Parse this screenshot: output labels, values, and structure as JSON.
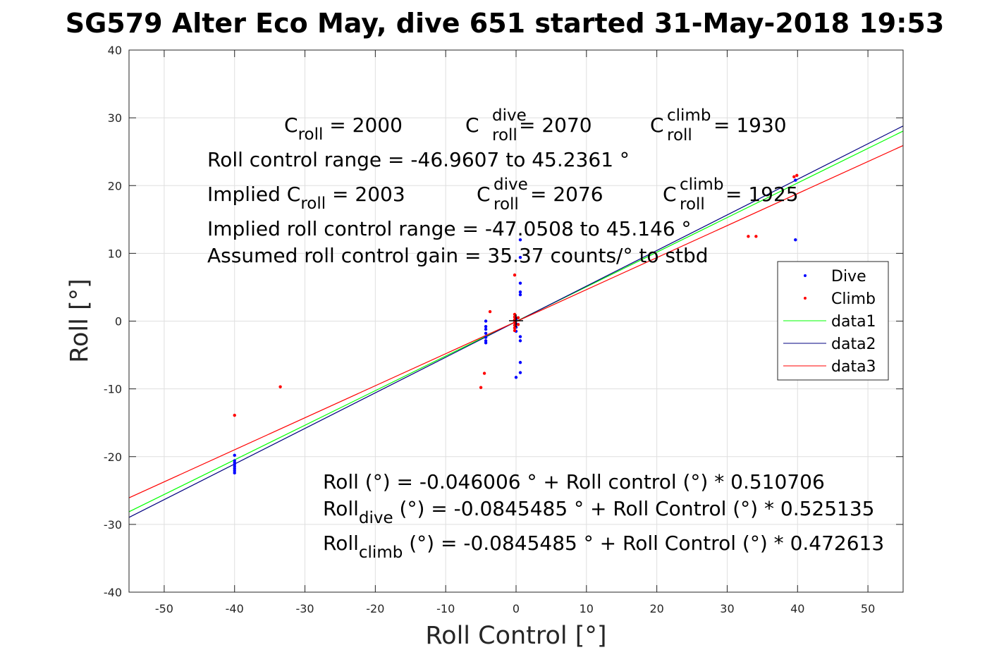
{
  "chart_data": {
    "type": "scatter",
    "title": "SG579 Alter Eco May, dive 651 started 31-May-2018 19:53",
    "xlabel": "Roll Control [°]",
    "ylabel": "Roll [°]",
    "xlim": [
      -55,
      55
    ],
    "ylim": [
      -40,
      40
    ],
    "xticks": [
      -50,
      -40,
      -30,
      -20,
      -10,
      0,
      10,
      20,
      30,
      40,
      50
    ],
    "yticks": [
      -40,
      -30,
      -20,
      -10,
      0,
      10,
      20,
      30,
      40
    ],
    "grid": true,
    "legend_position": "east",
    "colors": {
      "dive": "#0000ff",
      "climb": "#ff0000",
      "data1": "#00ff00",
      "data2": "#000080",
      "data3": "#ff0000"
    },
    "series": [
      {
        "name": "Dive",
        "kind": "points",
        "points": [
          [
            -40,
            -19.8
          ],
          [
            -40,
            -20.6
          ],
          [
            -40,
            -20.9
          ],
          [
            -40,
            -21.2
          ],
          [
            -40,
            -21.5
          ],
          [
            -40,
            -21.8
          ],
          [
            -40,
            -22.1
          ],
          [
            -40,
            -22.4
          ],
          [
            -4.3,
            0
          ],
          [
            -4.3,
            -0.8
          ],
          [
            -4.3,
            -1.2
          ],
          [
            -4.3,
            -1.8
          ],
          [
            -4.3,
            -2.4
          ],
          [
            -4.3,
            -2.9
          ],
          [
            -4.3,
            -3.2
          ],
          [
            0,
            -0.4
          ],
          [
            0,
            -0.9
          ],
          [
            0,
            -1.5
          ],
          [
            0,
            -8.3
          ],
          [
            0.1,
            0.4
          ],
          [
            0.6,
            12
          ],
          [
            0.6,
            9.4
          ],
          [
            0.6,
            5.6
          ],
          [
            0.6,
            4.3
          ],
          [
            0.6,
            3.9
          ],
          [
            0.6,
            -2.3
          ],
          [
            0.6,
            -2.9
          ],
          [
            0.6,
            -6.1
          ],
          [
            0.6,
            -7.6
          ],
          [
            39.7,
            20.8
          ],
          [
            39.7,
            12
          ]
        ]
      },
      {
        "name": "Climb",
        "kind": "points",
        "points": [
          [
            -40,
            -13.9
          ],
          [
            -33.5,
            -9.7
          ],
          [
            -5,
            -9.8
          ],
          [
            -4.5,
            -7.7
          ],
          [
            -3.7,
            1.4
          ],
          [
            -0.2,
            6.8
          ],
          [
            -0.2,
            1
          ],
          [
            -0.2,
            0.6
          ],
          [
            -0.2,
            0.2
          ],
          [
            -0.2,
            -0.2
          ],
          [
            -0.2,
            -0.6
          ],
          [
            -0.2,
            -1
          ],
          [
            -0.2,
            -1.4
          ],
          [
            0.3,
            0.5
          ],
          [
            0.3,
            -0.5
          ],
          [
            33,
            12.5
          ],
          [
            34.1,
            12.5
          ],
          [
            39.5,
            21.3
          ],
          [
            39.9,
            21.5
          ]
        ]
      },
      {
        "name": "data1",
        "kind": "line",
        "intercept": -0.046006,
        "slope": 0.510706
      },
      {
        "name": "data2",
        "kind": "line",
        "intercept": -0.0845485,
        "slope": 0.525135
      },
      {
        "name": "data3",
        "kind": "line",
        "intercept": -0.0845485,
        "slope": 0.472613
      }
    ],
    "annotations": {
      "c_roll_main": "C",
      "c_roll_sub": "roll",
      "c_roll_val": " = 2000",
      "c_dive_sup": "dive",
      "c_dive_sub": "roll",
      "c_dive_val": " = 2070",
      "c_climb_sup": "climb",
      "c_climb_sub": "roll",
      "c_climb_val": " = 1930",
      "roll_range": "Roll control range = -46.9607 to 45.2361 °",
      "implied_main": "Implied C",
      "implied_sub": "roll",
      "implied_val": " = 2003",
      "implied_dive_main": "C",
      "implied_dive_sup": "dive",
      "implied_dive_sub": "roll",
      "implied_dive_val": " = 2076",
      "implied_climb_main": "C",
      "implied_climb_sup": "climb",
      "implied_climb_sub": "roll",
      "implied_climb_val": " = 1925",
      "implied_range": "Implied roll control range = -47.0508 to 45.146 °",
      "gain": "Assumed roll control gain = 35.37 counts/° to stbd",
      "fit_all": "Roll (°) = -0.046006 ° + Roll control (°) * 0.510706",
      "fit_dive_main": "Roll",
      "fit_dive_sub": "dive",
      "fit_dive_rest": " (°) = -0.0845485 ° + Roll Control (°) * 0.525135",
      "fit_climb_main": "Roll",
      "fit_climb_sub": "climb",
      "fit_climb_rest": " (°) = -0.0845485 ° + Roll Control (°) * 0.472613"
    }
  }
}
